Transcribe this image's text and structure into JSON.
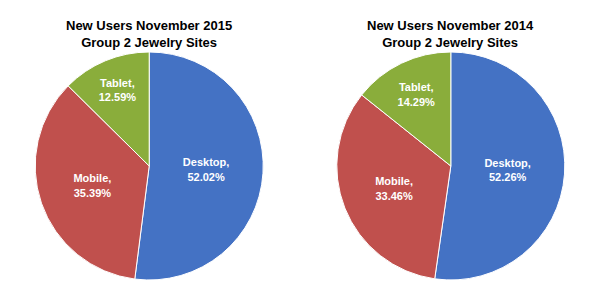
{
  "chart_data": [
    {
      "type": "pie",
      "title": "New Users November 2015\nGroup 2 Jewelry Sites",
      "values": [
        52.02,
        35.39,
        12.59
      ],
      "value_labels": [
        "Desktop,\n52.02%",
        "Mobile,\n35.39%",
        "Tablet,\n12.59%"
      ],
      "colors": [
        "#4472C4",
        "#C0504D",
        "#8AAD3B"
      ],
      "data_labels": true
    },
    {
      "type": "pie",
      "title": "New Users November 2014\nGroup 2 Jewelry Sites",
      "values": [
        52.26,
        33.46,
        14.29
      ],
      "value_labels": [
        "Desktop,\n52.26%",
        "Mobile,\n33.46%",
        "Tablet,\n14.29%"
      ],
      "colors": [
        "#4472C4",
        "#C0504D",
        "#8AAD3B"
      ],
      "data_labels": true
    }
  ]
}
